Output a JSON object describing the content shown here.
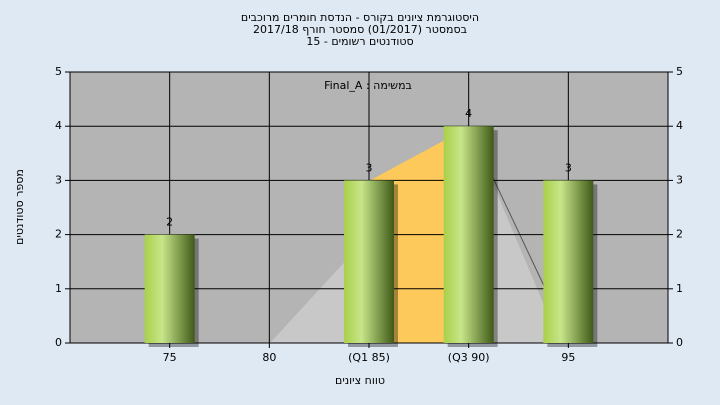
{
  "chart_data": {
    "type": "bar",
    "title": [
      "היסטוגרמת ציונים בקורס - הנדסת חומרים מרוכבים",
      "בסמסטר  (01/2017)  סמסטר חורף 2017/18",
      "סטודנטים רשומים - 15"
    ],
    "annotation": "במשימה : Final_A",
    "x_label": "טווח ציונים",
    "y_label": "מספר סטודנטים",
    "categories": [
      "75",
      "80",
      "(Q1 85)",
      "(Q3 90)",
      "95"
    ],
    "values": [
      2,
      0,
      3,
      4,
      3
    ],
    "ylim": [
      0,
      5
    ],
    "yticks": [
      0,
      1,
      2,
      3,
      4,
      5
    ],
    "grid": true
  }
}
